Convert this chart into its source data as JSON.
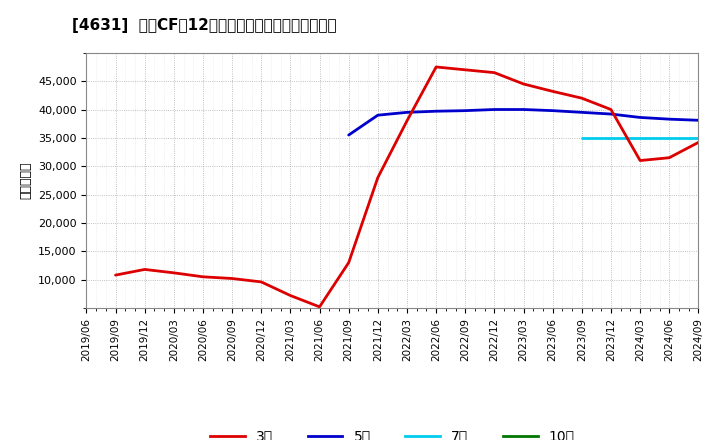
{
  "title": "[4631]  投賄CFの12か月移動合計の標準偏差の推移",
  "ylabel": "（百万円）",
  "background_color": "#ffffff",
  "grid_color": "#aaaaaa",
  "ylim": [
    5000,
    50000
  ],
  "yticks": [
    10000,
    15000,
    20000,
    25000,
    30000,
    35000,
    40000,
    45000
  ],
  "legend_labels": [
    "3年",
    "5年",
    "7年",
    "10年"
  ],
  "legend_colors": [
    "#dd0000",
    "#0000cc",
    "#00ccee",
    "#007700"
  ],
  "series_3y": {
    "x": [
      1,
      2,
      3,
      4,
      5,
      6,
      7,
      8,
      9,
      10,
      11,
      12,
      13,
      14,
      15,
      16,
      17,
      18,
      19,
      20,
      21
    ],
    "y": [
      10800,
      11800,
      11200,
      10500,
      10200,
      9600,
      7200,
      5200,
      13000,
      28000,
      38000,
      47500,
      47000,
      46500,
      44500,
      43200,
      42000,
      40000,
      31000,
      31500,
      34200
    ]
  },
  "series_5y": {
    "x": [
      9,
      10,
      11,
      12,
      13,
      14,
      15,
      16,
      17,
      18,
      19,
      20,
      21
    ],
    "y": [
      35500,
      39000,
      39500,
      39700,
      39800,
      40000,
      40000,
      39800,
      39500,
      39200,
      38600,
      38300,
      38100
    ]
  },
  "series_7y": {
    "x": [
      17,
      18,
      19,
      20,
      21
    ],
    "y": [
      34900,
      34900,
      34900,
      34900,
      34900
    ]
  },
  "series_10y": {
    "x": [],
    "y": []
  },
  "xticklabels": [
    "2019/06",
    "2019/09",
    "2019/12",
    "2020/03",
    "2020/06",
    "2020/09",
    "2020/12",
    "2021/03",
    "2021/06",
    "2021/09",
    "2021/12",
    "2022/03",
    "2022/06",
    "2022/09",
    "2022/12",
    "2023/03",
    "2023/06",
    "2023/09",
    "2023/12",
    "2024/03",
    "2024/06",
    "2024/09"
  ]
}
